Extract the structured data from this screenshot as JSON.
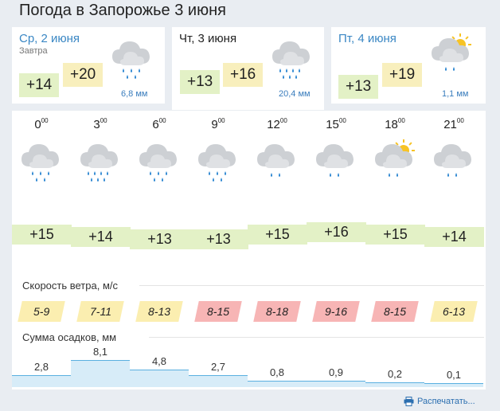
{
  "title": "Погода в Запорожье 3 июня",
  "days": [
    {
      "date": "Ср, 2 июня",
      "sub": "Завтра",
      "lo": "+14",
      "hi": "+20",
      "precip": "6,8 мм",
      "icon": "cloud-rain-icon"
    },
    {
      "date": "Чт, 3 июня",
      "sub": "",
      "lo": "+13",
      "hi": "+16",
      "precip": "20,4 мм",
      "icon": "cloud-heavy-rain-icon"
    },
    {
      "date": "Пт, 4 июня",
      "sub": "",
      "lo": "+13",
      "hi": "+19",
      "precip": "1,1 мм",
      "icon": "sun-cloud-rain-icon"
    }
  ],
  "hourly": {
    "times": [
      {
        "h": "0",
        "m": "00"
      },
      {
        "h": "3",
        "m": "00"
      },
      {
        "h": "6",
        "m": "00"
      },
      {
        "h": "9",
        "m": "00"
      },
      {
        "h": "12",
        "m": "00"
      },
      {
        "h": "15",
        "m": "00"
      },
      {
        "h": "18",
        "m": "00"
      },
      {
        "h": "21",
        "m": "00"
      }
    ],
    "icons": [
      "cloud-rain-icon",
      "cloud-heavy-rain-icon",
      "cloud-rain-icon",
      "cloud-rain-icon",
      "cloud-light-rain-icon",
      "cloud-light-rain-icon",
      "sun-cloud-rain-icon",
      "cloud-light-rain-icon"
    ],
    "temps": [
      "+15",
      "+14",
      "+13",
      "+13",
      "+15",
      "+16",
      "+15",
      "+14"
    ],
    "temp_values": [
      15,
      14,
      13,
      13,
      15,
      16,
      15,
      14
    ]
  },
  "wind": {
    "label": "Скорость ветра, м/с",
    "values": [
      "5-9",
      "7-11",
      "8-13",
      "8-15",
      "8-18",
      "9-16",
      "8-15",
      "6-13"
    ],
    "levels": [
      "yellow",
      "yellow",
      "yellow",
      "red",
      "red",
      "red",
      "red",
      "yellow"
    ]
  },
  "precip": {
    "label": "Сумма осадков, мм",
    "labels": [
      "2,8",
      "8,1",
      "4,8",
      "2,7",
      "0,8",
      "0,9",
      "0,2",
      "0,1"
    ],
    "values": [
      2.8,
      8.1,
      4.8,
      2.7,
      0.8,
      0.9,
      0.2,
      0.1
    ]
  },
  "print_label": "Распечатать...",
  "colors": {
    "link": "#3a87c4",
    "temp_low_bg": "#e3f1c6",
    "temp_high_bg": "#f8efbd",
    "wind_yellow": "#fbeeb0",
    "wind_red": "#f7b5b5",
    "precip_fill": "#d7ecf8",
    "precip_line": "#5ab0e0"
  }
}
